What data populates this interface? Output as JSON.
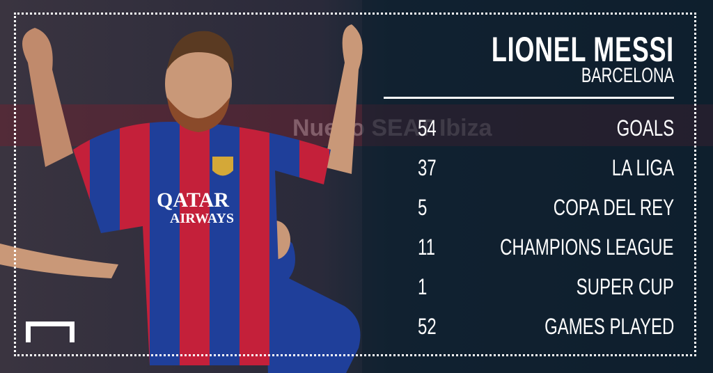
{
  "player": {
    "name": "LIONEL MESSI",
    "club": "BARCELONA"
  },
  "stats": [
    {
      "value": "54",
      "label": "GOALS"
    },
    {
      "value": "37",
      "label": "LA LIGA"
    },
    {
      "value": "5",
      "label": "COPA DEL REY"
    },
    {
      "value": "11",
      "label": "CHAMPIONS LEAGUE"
    },
    {
      "value": "1",
      "label": "SUPER CUP"
    },
    {
      "value": "52",
      "label": "GAMES PLAYED"
    }
  ],
  "photo": {
    "sponsor_line1": "QATAR",
    "sponsor_line2": "AIRWAYS",
    "banner_text": "Nuevo SEAT Ibiza"
  },
  "colors": {
    "background": "#0e1c2a",
    "text": "#ffffff",
    "jersey_red": "#c4203a",
    "jersey_blue": "#1f3f9a"
  }
}
